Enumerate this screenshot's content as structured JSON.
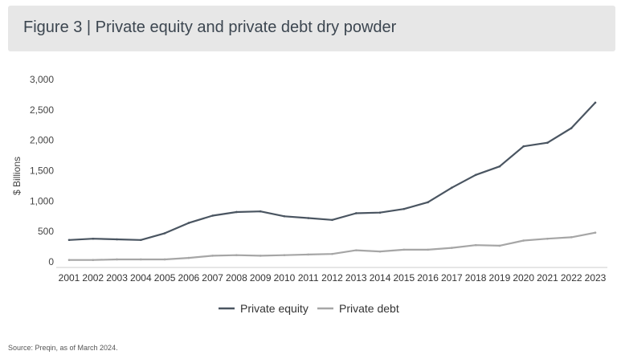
{
  "title": "Figure 3 | Private equity and private debt dry powder",
  "source": "Source: Preqin, as of March 2024.",
  "chart_data": {
    "type": "line",
    "title": "Figure 3 | Private equity and private debt dry powder",
    "xlabel": "",
    "ylabel": "$ Billions",
    "ylim": [
      0,
      3000
    ],
    "yticks": [
      0,
      500,
      1000,
      1500,
      2000,
      2500,
      3000
    ],
    "ytick_labels": [
      "0",
      "500",
      "1,000",
      "1,500",
      "2,000",
      "2,500",
      "3,000"
    ],
    "grid": false,
    "legend_position": "bottom-center",
    "categories": [
      "2001",
      "2002",
      "2003",
      "2004",
      "2005",
      "2006",
      "2007",
      "2008",
      "2009",
      "2010",
      "2011",
      "2012",
      "2013",
      "2014",
      "2015",
      "2016",
      "2017",
      "2018",
      "2019",
      "2020",
      "2021",
      "2022",
      "2023"
    ],
    "series": [
      {
        "name": "Private equity",
        "color": "#4a5561",
        "values": [
          360,
          380,
          370,
          360,
          470,
          640,
          760,
          820,
          830,
          750,
          720,
          690,
          800,
          810,
          870,
          980,
          1220,
          1430,
          1570,
          1900,
          1960,
          2200,
          2620
        ]
      },
      {
        "name": "Private debt",
        "color": "#a6a6a6",
        "values": [
          30,
          30,
          40,
          40,
          40,
          65,
          100,
          110,
          100,
          110,
          120,
          130,
          190,
          170,
          200,
          200,
          230,
          275,
          265,
          350,
          380,
          405,
          480
        ]
      }
    ]
  }
}
